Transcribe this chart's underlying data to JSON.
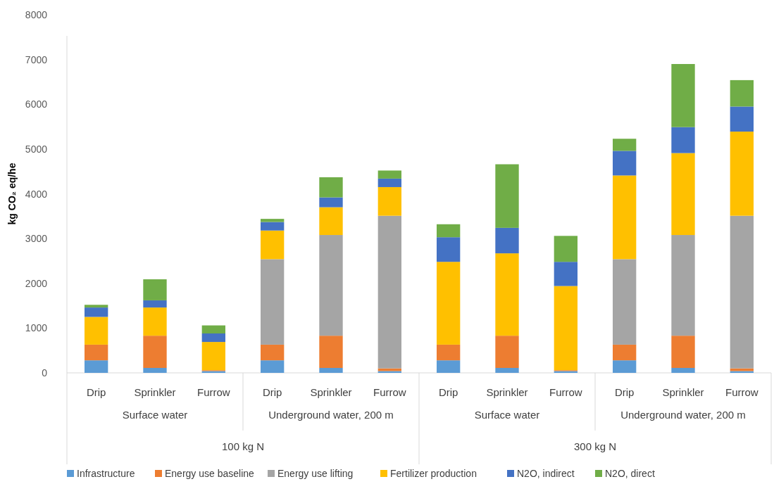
{
  "chart_data": {
    "type": "bar",
    "stacked": true,
    "ylabel": "kg CO₂ eq/he",
    "categories": [
      "Drip",
      "Sprinkler",
      "Furrow",
      "Drip",
      "Sprinkler",
      "Furrow",
      "Drip",
      "Sprinkler",
      "Furrow",
      "Drip",
      "Sprinkler",
      "Furrow"
    ],
    "annotations": [
      "Surface water",
      "Underground water, 200 m",
      "Surface water",
      "Underground water, 200 m",
      "100 kg N",
      "300 kg N"
    ],
    "ylim": [
      0,
      8000
    ],
    "yticks": [
      0,
      1000,
      2000,
      3000,
      4000,
      5000,
      6000,
      7000,
      8000
    ],
    "grid": false,
    "legend": "bottom",
    "series": [
      {
        "name": "Infrastructure",
        "color": "#5b9bd5",
        "values": [
          280,
          110,
          40,
          280,
          110,
          40,
          280,
          110,
          40,
          280,
          110,
          40
        ]
      },
      {
        "name": "Energy use baseline",
        "color": "#ed7d31",
        "values": [
          350,
          720,
          20,
          350,
          720,
          60,
          350,
          720,
          20,
          350,
          720,
          60
        ]
      },
      {
        "name": "Energy use lifting",
        "color": "#a5a5a5",
        "values": [
          0,
          0,
          0,
          1910,
          2250,
          3410,
          0,
          0,
          0,
          1910,
          2250,
          3410
        ]
      },
      {
        "name": "Fertilizer production",
        "color": "#ffc000",
        "values": [
          620,
          630,
          630,
          640,
          620,
          640,
          1850,
          1840,
          1880,
          1870,
          1830,
          1880
        ]
      },
      {
        "name": "N2O, indirect",
        "color": "#4472c4",
        "values": [
          210,
          160,
          190,
          190,
          220,
          190,
          550,
          570,
          540,
          550,
          580,
          560
        ]
      },
      {
        "name": "N2O, direct",
        "color": "#70ad47",
        "values": [
          60,
          470,
          180,
          70,
          450,
          180,
          290,
          1420,
          580,
          270,
          1410,
          590
        ]
      }
    ]
  }
}
